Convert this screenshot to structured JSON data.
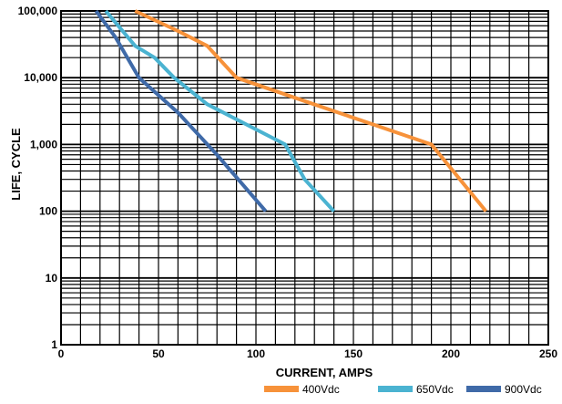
{
  "chart_data": {
    "type": "line",
    "xlabel": "CURRENT, AMPS",
    "ylabel": "LIFE, CYCLE",
    "xlim": [
      0,
      250
    ],
    "ylim": [
      1,
      100000
    ],
    "y_scale": "log",
    "grid": true,
    "legend_position": "bottom-right",
    "x_ticks": [
      "0",
      "50",
      "100",
      "150",
      "200",
      "250"
    ],
    "y_ticks": [
      "1",
      "10",
      "100",
      "1,000",
      "10,000",
      "100,000"
    ],
    "series": [
      {
        "name": "400Vdc",
        "color": "#f7923a",
        "points": [
          [
            38,
            100000
          ],
          [
            60,
            50000
          ],
          [
            75,
            30000
          ],
          [
            90,
            10000
          ],
          [
            120,
            5000
          ],
          [
            160,
            2000
          ],
          [
            190,
            1000
          ],
          [
            218,
            100
          ]
        ]
      },
      {
        "name": "650Vdc",
        "color": "#4bb3d1",
        "points": [
          [
            23,
            100000
          ],
          [
            38,
            30000
          ],
          [
            48,
            20000
          ],
          [
            58,
            10000
          ],
          [
            75,
            4000
          ],
          [
            95,
            2000
          ],
          [
            115,
            1000
          ],
          [
            125,
            300
          ],
          [
            140,
            100
          ]
        ]
      },
      {
        "name": "900Vdc",
        "color": "#3f6aa8",
        "points": [
          [
            18,
            100000
          ],
          [
            28,
            40000
          ],
          [
            40,
            10000
          ],
          [
            60,
            3000
          ],
          [
            80,
            700
          ],
          [
            105,
            100
          ]
        ]
      }
    ]
  }
}
